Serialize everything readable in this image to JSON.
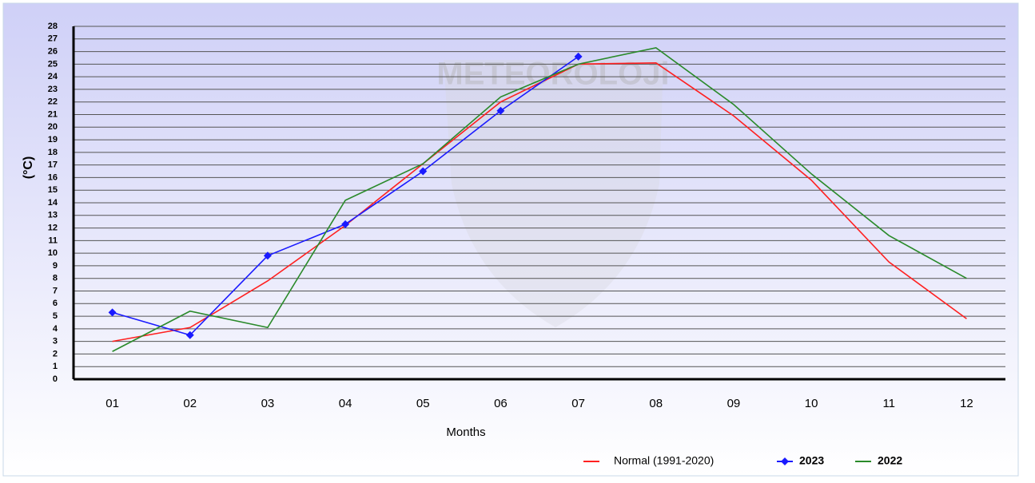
{
  "chart_data": {
    "type": "line",
    "watermark": "METEOROLOJi",
    "ylabel": "(°C)",
    "xlabel": "Months",
    "categories": [
      "01",
      "02",
      "03",
      "04",
      "05",
      "06",
      "07",
      "08",
      "09",
      "10",
      "11",
      "12"
    ],
    "series": [
      {
        "name": "Normal (1991-2020)",
        "color": "#ff2020",
        "marker": "none",
        "values": [
          3.0,
          4.1,
          7.8,
          12.2,
          17.1,
          22.0,
          25.0,
          25.1,
          20.9,
          15.8,
          9.3,
          4.8
        ]
      },
      {
        "name": "2023",
        "color": "#1a1aff",
        "marker": "diamond",
        "values": [
          5.3,
          3.5,
          9.8,
          12.3,
          16.5,
          21.3,
          25.6,
          null,
          null,
          null,
          null,
          null
        ]
      },
      {
        "name": "2022",
        "color": "#2a8a2a",
        "marker": "none",
        "values": [
          2.2,
          5.4,
          4.1,
          14.2,
          17.1,
          22.4,
          25.0,
          26.3,
          21.8,
          16.3,
          11.4,
          8.0
        ]
      }
    ],
    "ylim": [
      0,
      28
    ],
    "yticks": [
      0,
      1,
      2,
      3,
      4,
      5,
      6,
      7,
      8,
      9,
      10,
      11,
      12,
      13,
      14,
      15,
      16,
      17,
      18,
      19,
      20,
      21,
      22,
      23,
      24,
      25,
      26,
      27,
      28
    ],
    "grid": true,
    "legend": "bottom-right"
  }
}
